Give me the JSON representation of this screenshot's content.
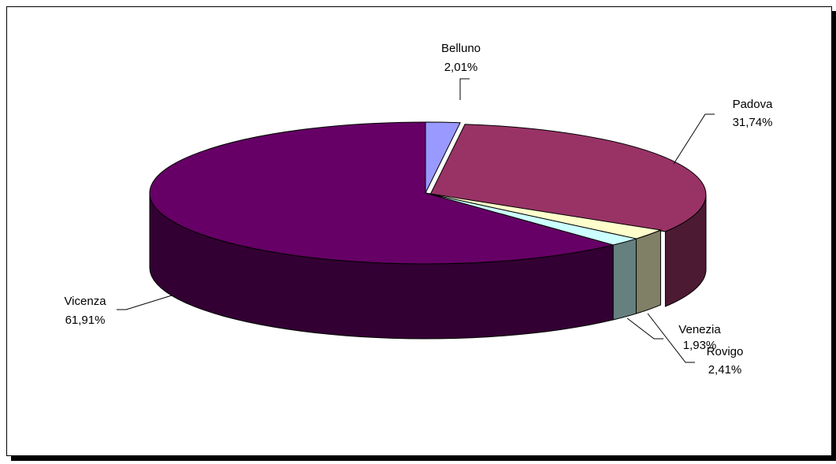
{
  "chart_data": {
    "type": "pie",
    "style": "3d-exploded-perspective",
    "title": "",
    "slices": [
      {
        "label": "Belluno",
        "value": 2.01,
        "value_label": "2,01%",
        "color": "#9999ff"
      },
      {
        "label": "Padova",
        "value": 31.74,
        "value_label": "31,74%",
        "color": "#993366"
      },
      {
        "label": "Rovigo",
        "value": 2.41,
        "value_label": "2,41%",
        "color": "#ffffcc"
      },
      {
        "label": "Venezia",
        "value": 1.93,
        "value_label": "1,93%",
        "color": "#ccffff"
      },
      {
        "label": "Vicenza",
        "value": 61.91,
        "value_label": "61,91%",
        "color": "#660066"
      }
    ],
    "legend": "none",
    "grid": false
  }
}
